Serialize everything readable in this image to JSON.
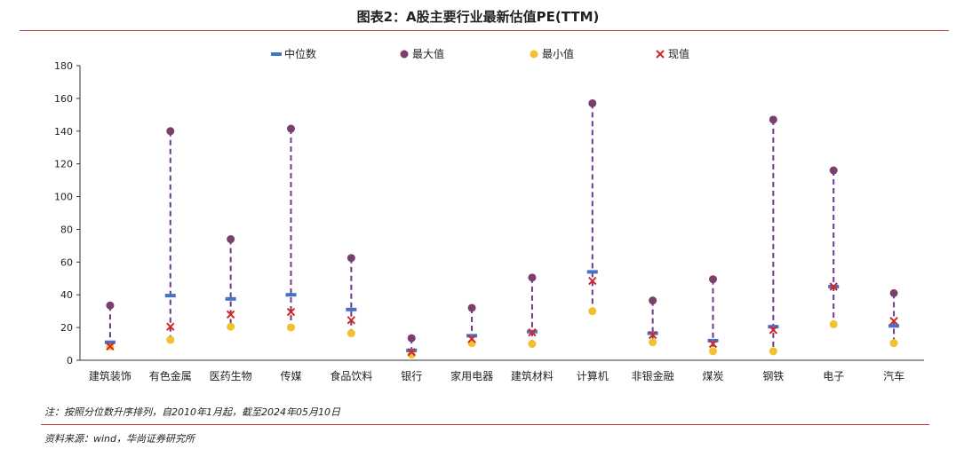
{
  "header": {
    "title": "图表2：A股主要行业最新估值PE(TTM)"
  },
  "footer": {
    "note": "注：按照分位数升序排列，自2010年1月起，截至2024年05月10日",
    "source": "资料来源：wind，华尚证券研究所"
  },
  "colors": {
    "median": "#4472c4",
    "max": "#7b3f6e",
    "min": "#f2c12e",
    "current": "#d62728",
    "dash": "#6a3a8c",
    "rule": "#c0393b"
  },
  "chart_data": {
    "type": "scatter",
    "title": "图表2：A股主要行业最新估值PE(TTM)",
    "ylim": [
      0,
      180
    ],
    "yticks": [
      0,
      20,
      40,
      60,
      80,
      100,
      120,
      140,
      160,
      180
    ],
    "legend_position": "top",
    "categories": [
      "建筑装饰",
      "有色金属",
      "医药生物",
      "传媒",
      "食品饮料",
      "银行",
      "家用电器",
      "建筑材料",
      "计算机",
      "非银金融",
      "煤炭",
      "钢铁",
      "电子",
      "汽车"
    ],
    "series": [
      {
        "name": "中位数",
        "marker": "dash",
        "values": [
          11,
          39.5,
          37.5,
          40,
          31,
          6,
          15,
          17.5,
          54,
          16.5,
          12,
          20.5,
          45,
          21
        ]
      },
      {
        "name": "最大值",
        "marker": "circle",
        "values": [
          33.5,
          140,
          74,
          141.5,
          62.5,
          13.5,
          32,
          50.5,
          157,
          36.5,
          49.5,
          147,
          116,
          41
        ]
      },
      {
        "name": "最小值",
        "marker": "circle",
        "values": [
          8.5,
          12.5,
          20.5,
          20,
          16.5,
          3.5,
          10.5,
          10,
          30,
          11,
          5.5,
          5.5,
          22,
          10.5
        ]
      },
      {
        "name": "现值",
        "marker": "x",
        "values": [
          8.5,
          20.5,
          28,
          29.5,
          24.5,
          5,
          13,
          17,
          48.5,
          15.5,
          10,
          18.5,
          45,
          24
        ]
      }
    ]
  }
}
